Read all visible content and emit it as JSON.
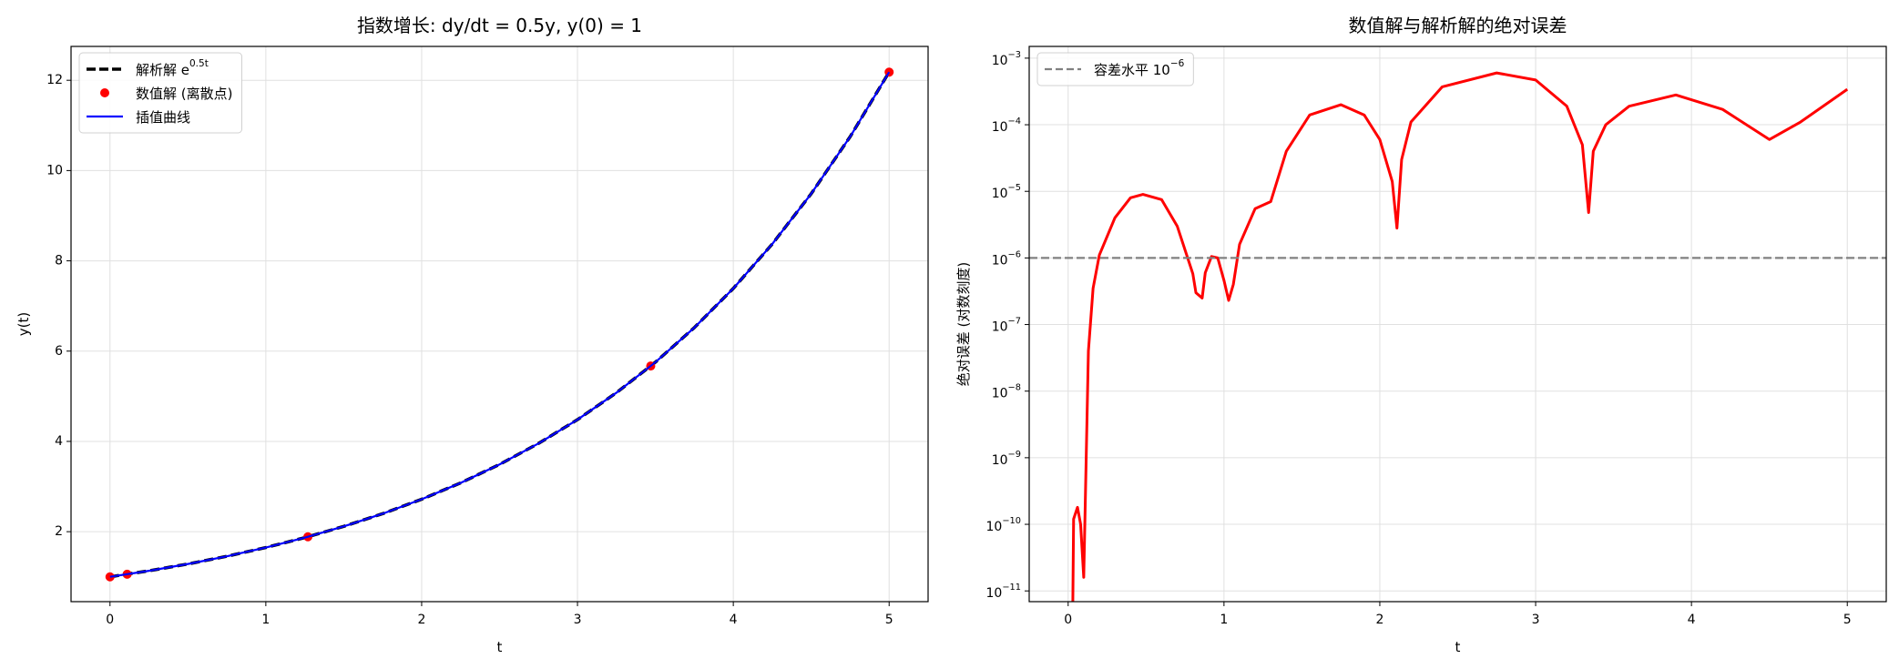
{
  "chart_data": [
    {
      "type": "line",
      "title": "指数增长: dy/dt = 0.5y, y(0) = 1",
      "xlabel": "t",
      "ylabel": "y(t)",
      "xlim": [
        -0.25,
        5.25
      ],
      "xticks": [
        0,
        1,
        2,
        3,
        4,
        5
      ],
      "ylim": [
        0.45,
        12.75
      ],
      "yticks": [
        2,
        4,
        6,
        8,
        10,
        12
      ],
      "grid": true,
      "legend": "upper left",
      "series": [
        {
          "name": "解析解 e^{0.5t}",
          "color": "#000000",
          "style": "dashed",
          "x": [
            0,
            0.25,
            0.5,
            0.75,
            1,
            1.25,
            1.5,
            1.75,
            2,
            2.25,
            2.5,
            2.75,
            3,
            3.25,
            3.5,
            3.75,
            4,
            4.25,
            4.5,
            4.75,
            5
          ],
          "values": [
            1,
            1.1331,
            1.284,
            1.455,
            1.6487,
            1.8682,
            2.117,
            2.3989,
            2.7183,
            3.0802,
            3.4903,
            3.9551,
            4.4817,
            5.0784,
            5.7546,
            6.5208,
            7.3891,
            8.3729,
            9.4877,
            10.751,
            12.1825
          ]
        },
        {
          "name": "数值解 (离散点)",
          "color": "#ff0000",
          "style": "points",
          "x": [
            0,
            0.11,
            1.27,
            3.47,
            5
          ],
          "values": [
            1,
            1.057,
            1.887,
            5.67,
            12.18
          ]
        },
        {
          "name": "插值曲线",
          "color": "#0000ff",
          "style": "solid",
          "x": [
            0,
            0.25,
            0.5,
            0.75,
            1,
            1.25,
            1.5,
            1.75,
            2,
            2.25,
            2.5,
            2.75,
            3,
            3.25,
            3.5,
            3.75,
            4,
            4.25,
            4.5,
            4.75,
            5
          ],
          "values": [
            1,
            1.1331,
            1.284,
            1.455,
            1.6487,
            1.8682,
            2.117,
            2.3989,
            2.7183,
            3.0802,
            3.4903,
            3.9551,
            4.4817,
            5.0784,
            5.7546,
            6.5208,
            7.3891,
            8.3729,
            9.4877,
            10.751,
            12.1825
          ]
        }
      ]
    },
    {
      "type": "line",
      "title": "数值解与解析解的绝对误差",
      "xlabel": "t",
      "ylabel": "绝对误差 (对数刻度)",
      "xlim": [
        -0.25,
        5.25
      ],
      "xticks": [
        0,
        1,
        2,
        3,
        4,
        5
      ],
      "yscale": "log",
      "ylim": [
        6.9e-12,
        0.0015
      ],
      "yticks": [
        {
          "value": 1e-11,
          "label": "10^{−11}"
        },
        {
          "value": 1e-10,
          "label": "10^{−10}"
        },
        {
          "value": 1e-09,
          "label": "10^{−9}"
        },
        {
          "value": 1e-08,
          "label": "10^{−8}"
        },
        {
          "value": 1e-07,
          "label": "10^{−7}"
        },
        {
          "value": 1e-06,
          "label": "10^{−6}"
        },
        {
          "value": 1e-05,
          "label": "10^{−5}"
        },
        {
          "value": 0.0001,
          "label": "10^{−4}"
        },
        {
          "value": 0.001,
          "label": "10^{−3}"
        }
      ],
      "grid": true,
      "legend": "upper left",
      "series": [
        {
          "color": "#ff0000",
          "style": "solid",
          "x": [
            0.03,
            0.035,
            0.06,
            0.08,
            0.1,
            0.13,
            0.16,
            0.2,
            0.3,
            0.4,
            0.48,
            0.6,
            0.7,
            0.8,
            0.82,
            0.86,
            0.88,
            0.92,
            0.96,
            1.0,
            1.03,
            1.06,
            1.1,
            1.2,
            1.3,
            1.4,
            1.55,
            1.75,
            1.9,
            2.0,
            2.08,
            2.11,
            2.14,
            2.2,
            2.4,
            2.75,
            3.0,
            3.2,
            3.3,
            3.34,
            3.37,
            3.45,
            3.6,
            3.9,
            4.2,
            4.5,
            4.7,
            5.0
          ],
          "values": [
            6.9e-12,
            1.2e-10,
            1.8e-10,
            1e-10,
            1.6e-11,
            4e-08,
            3.5e-07,
            1.1e-06,
            4e-06,
            8e-06,
            9e-06,
            7.5e-06,
            3e-06,
            5.8e-07,
            3e-07,
            2.5e-07,
            6e-07,
            1.05e-06,
            1e-06,
            4.6e-07,
            2.3e-07,
            4e-07,
            1.6e-06,
            5.5e-06,
            7e-06,
            4e-05,
            0.00014,
            0.0002,
            0.00014,
            6e-05,
            1.4e-05,
            2.8e-06,
            3e-05,
            0.00011,
            0.00037,
            0.0006,
            0.00047,
            0.00019,
            5e-05,
            4.8e-06,
            4e-05,
            0.0001,
            0.00019,
            0.00028,
            0.00017,
            6e-05,
            0.00011,
            0.00034
          ]
        },
        {
          "name": "容差水平 10^{−6}",
          "color": "#808080",
          "style": "dashed-hline",
          "y": 1e-06
        }
      ]
    }
  ]
}
